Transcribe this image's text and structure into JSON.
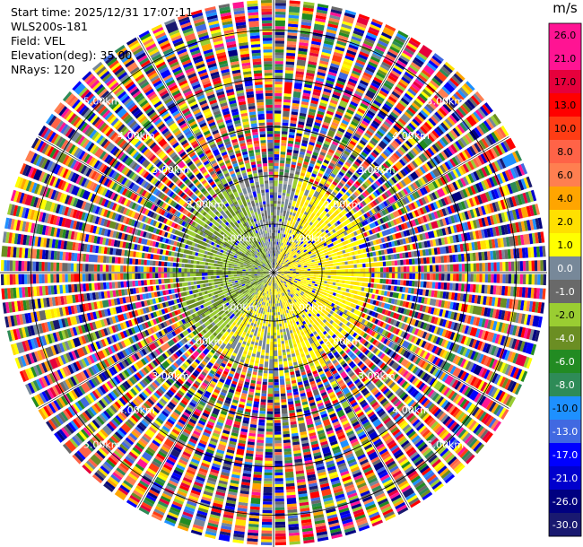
{
  "header": {
    "start_time": "Start time: 2025/12/31 17:07:11",
    "instrument": "WLS200s-181",
    "field": "Field: VEL",
    "elevation": "Elevation(deg): 35.00",
    "nrays": "NRays: 120"
  },
  "chart_data": {
    "type": "heatmap",
    "projection": "polar PPI",
    "field": "VEL",
    "units": "m/s",
    "nrays": 120,
    "elevation_deg": 35.0,
    "max_range_km": 5.6,
    "grid": true,
    "range_rings_km": [
      1,
      2,
      3,
      4,
      5
    ],
    "range_ring_labels": [
      "1.00km",
      "2.00km",
      "3.00km",
      "4.00km",
      "5.00km"
    ],
    "colorbar": {
      "label": "m/s",
      "ticks": [
        "26.0",
        "21.0",
        "17.0",
        "13.0",
        "10.0",
        "8.0",
        "6.0",
        "4.0",
        "2.0",
        "1.0",
        "0.0",
        "-1.0",
        "-2.0",
        "-4.0",
        "-6.0",
        "-8.0",
        "-10.0",
        "-13.0",
        "-17.0",
        "-21.0",
        "-26.0",
        "-30.0"
      ],
      "colors": [
        "#ff1493",
        "#ff1493",
        "#e6003c",
        "#ff0000",
        "#ff3c14",
        "#ff6347",
        "#ff7f50",
        "#ffa500",
        "#ffe000",
        "#ffff00",
        "#778899",
        "#696969",
        "#9acd32",
        "#6b8e23",
        "#228b22",
        "#2e8b57",
        "#1e90ff",
        "#4169e1",
        "#0000ff",
        "#0000cd",
        "#000080",
        "#191970"
      ]
    }
  }
}
